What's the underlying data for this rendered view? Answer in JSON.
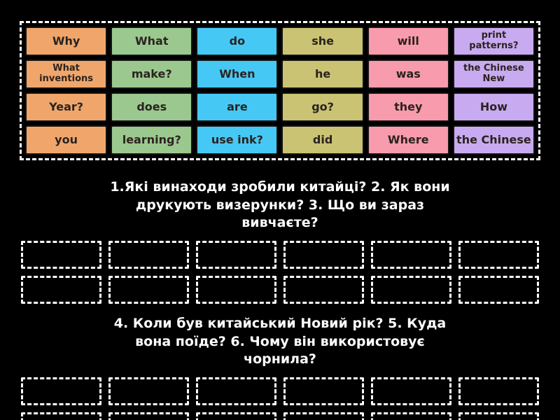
{
  "page": {
    "background_color": "#000000",
    "frame_border_color": "#ffffff",
    "slot_border_color": "#ffffff"
  },
  "tiles": {
    "column_colors": [
      "#f0a66b",
      "#9bc88f",
      "#46c8f5",
      "#c9c373",
      "#f89bac",
      "#c8aaf0"
    ],
    "rows": [
      [
        "Why",
        "What",
        "do",
        "she",
        "will",
        "print patterns?"
      ],
      [
        "What inventions",
        "make?",
        "When",
        "he",
        "was",
        "the Chinese New"
      ],
      [
        "Year?",
        "does",
        "are",
        "go?",
        "they",
        "How"
      ],
      [
        "you",
        "learning?",
        "use ink?",
        "did",
        "Where",
        "the Chinese"
      ]
    ]
  },
  "sections": [
    {
      "title": "1.Які винаходи зробили китайці? 2. Як вони друкують визерунки? 3. Що ви зараз вивчаєте?",
      "slot_rows": 2,
      "slots_per_row": 6
    },
    {
      "title": "4. Коли був китайський Новий рік? 5. Куда вона поїде? 6. Чому він використовує чорнила?",
      "slot_rows": 2,
      "slots_per_row": 6
    }
  ]
}
